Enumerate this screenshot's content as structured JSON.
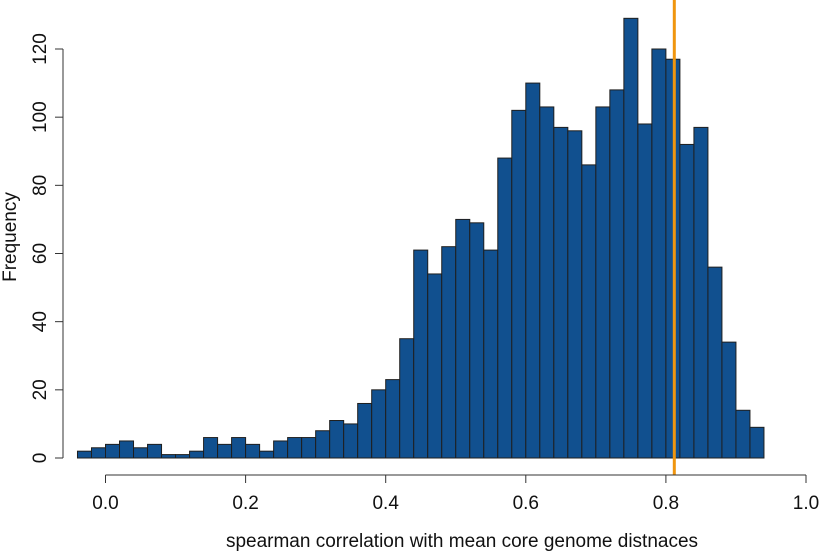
{
  "chart_data": {
    "type": "bar",
    "subtype": "histogram",
    "title": "",
    "xlabel": "spearman correlation with mean core genome distnaces",
    "ylabel": "Frequency",
    "xlim": [
      -0.04,
      1.0
    ],
    "ylim": [
      0,
      130
    ],
    "xticks": [
      0.0,
      0.2,
      0.4,
      0.6,
      0.8,
      1.0
    ],
    "xtick_labels": [
      "0.0",
      "0.2",
      "0.4",
      "0.6",
      "0.8",
      "1.0"
    ],
    "yticks": [
      0,
      20,
      40,
      60,
      80,
      100,
      120
    ],
    "ytick_labels": [
      "0",
      "20",
      "40",
      "60",
      "80",
      "100",
      "120"
    ],
    "bin_width": 0.02,
    "bin_edges_start": -0.04,
    "values": [
      2,
      3,
      4,
      5,
      3,
      4,
      1,
      1,
      2,
      6,
      4,
      6,
      4,
      2,
      5,
      6,
      6,
      8,
      11,
      10,
      16,
      20,
      23,
      35,
      61,
      54,
      62,
      70,
      69,
      61,
      88,
      102,
      110,
      103,
      97,
      96,
      86,
      103,
      108,
      129,
      98,
      120,
      117,
      92,
      97,
      56,
      34,
      14,
      9
    ],
    "vline": {
      "x": 0.812,
      "color": "#f0960f"
    },
    "bar_color": "#11508f",
    "grid": false,
    "legend": "none"
  }
}
